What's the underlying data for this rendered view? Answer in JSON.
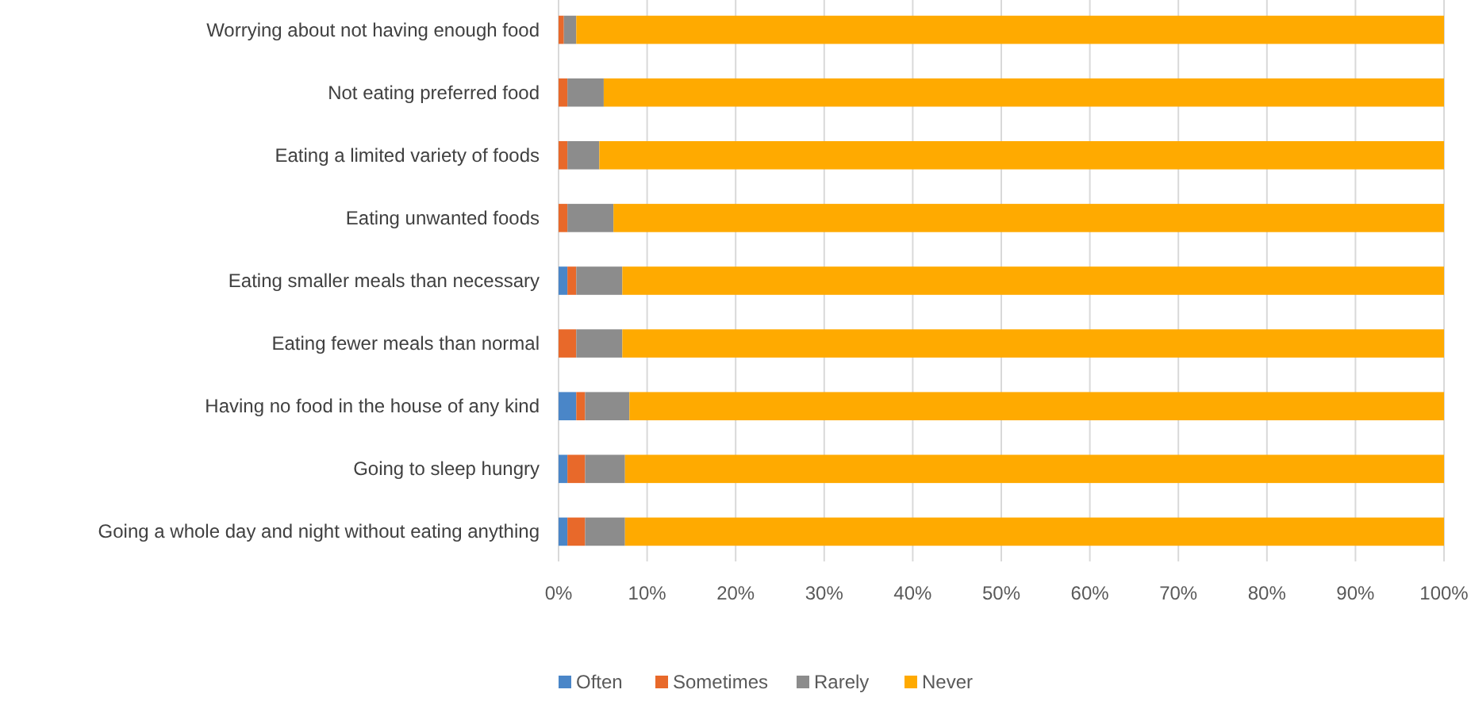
{
  "chart_data": {
    "type": "bar",
    "orientation": "horizontal",
    "stacked": true,
    "categories": [
      "Worrying about not having enough food",
      "Not eating preferred food",
      "Eating a limited variety of foods",
      "Eating unwanted foods",
      "Eating smaller meals than necessary",
      "Eating fewer meals than normal",
      "Having no food in the house of any kind",
      "Going to sleep hungry",
      "Going a whole day and night without eating anything"
    ],
    "series": [
      {
        "name": "Often",
        "color": "#4a86c8",
        "values": [
          0,
          0,
          0,
          0,
          1.0,
          0,
          2.0,
          1.0,
          1.0
        ]
      },
      {
        "name": "Sometimes",
        "color": "#e8692a",
        "values": [
          0.6,
          1.0,
          1.0,
          1.0,
          1.0,
          2.0,
          1.0,
          2.0,
          2.0
        ]
      },
      {
        "name": "Rarely",
        "color": "#8c8c8c",
        "values": [
          1.4,
          4.1,
          3.6,
          5.2,
          5.2,
          5.2,
          5.0,
          4.5,
          4.5
        ]
      },
      {
        "name": "Never",
        "color": "#ffaa00",
        "values": [
          98.0,
          94.9,
          95.4,
          93.8,
          92.8,
          92.8,
          92.0,
          92.5,
          92.5
        ]
      }
    ],
    "xlim": [
      0,
      100
    ],
    "xticks": [
      {
        "value": 0,
        "label": "0%"
      },
      {
        "value": 10,
        "label": "10%"
      },
      {
        "value": 20,
        "label": "20%"
      },
      {
        "value": 30,
        "label": "30%"
      },
      {
        "value": 40,
        "label": "40%"
      },
      {
        "value": 50,
        "label": "50%"
      },
      {
        "value": 60,
        "label": "60%"
      },
      {
        "value": 70,
        "label": "70%"
      },
      {
        "value": 80,
        "label": "80%"
      },
      {
        "value": 90,
        "label": "90%"
      },
      {
        "value": 100,
        "label": "100%"
      }
    ],
    "grid": "x",
    "legend": "bottom"
  }
}
